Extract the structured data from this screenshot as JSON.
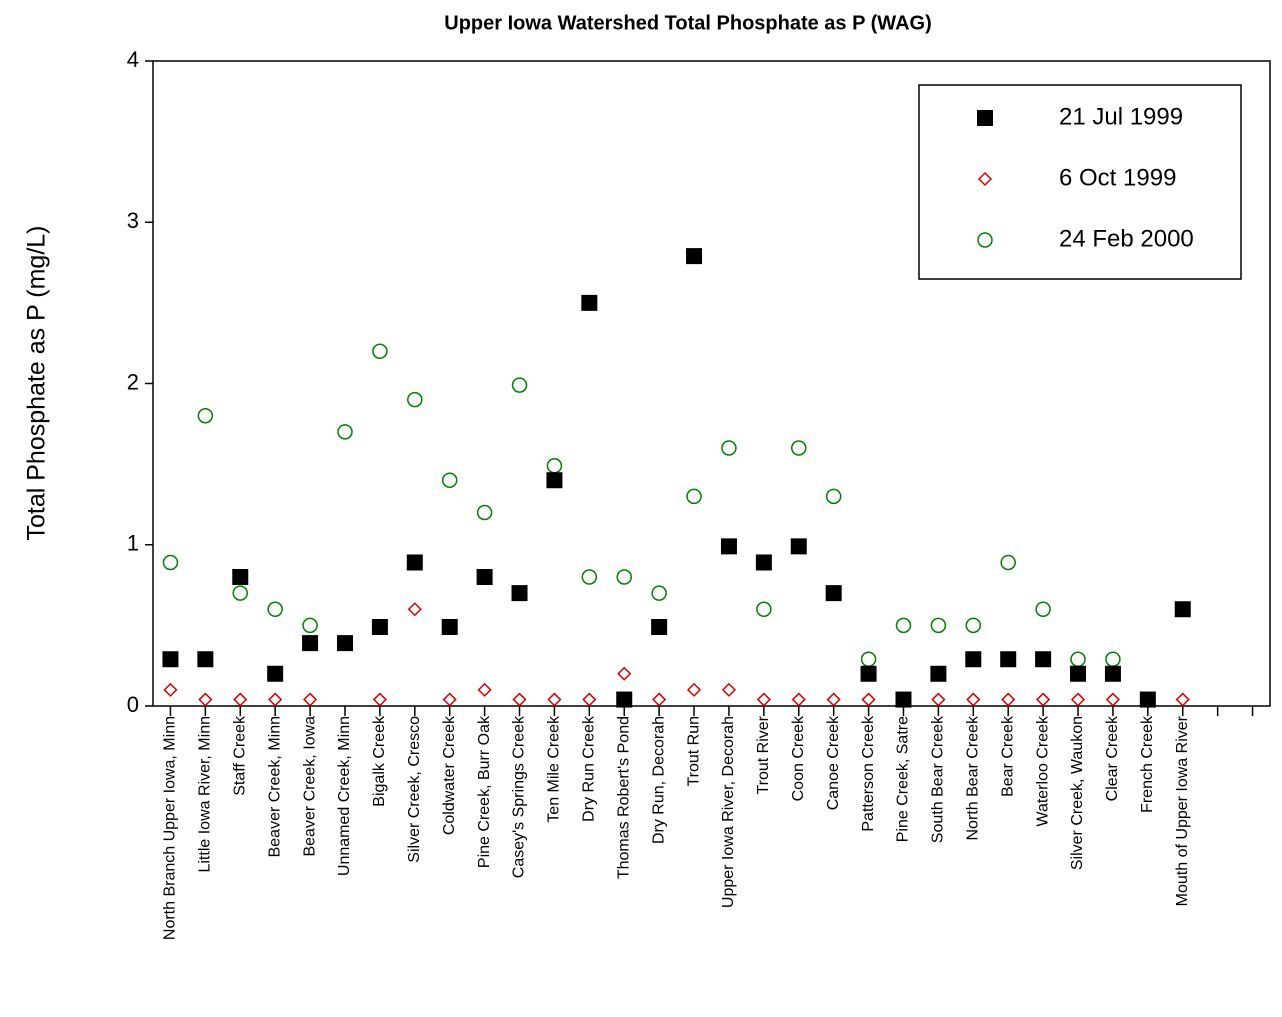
{
  "chart_data": {
    "type": "scatter",
    "title": "Upper Iowa Watershed Total Phosphate as P  (WAG)",
    "y_label": "Total Phosphate as P (mg/L)",
    "categories": [
      "North Branch Upper Iowa, Minn",
      "Little Iowa River, Minn",
      "Staff Creek",
      "Beaver Creek, Minn",
      "Beaver Creek, Iowa",
      "Unnamed Creek, Minn",
      "Bigalk Creek",
      "Silver Creek, Cresco",
      "Coldwater Creek",
      "Pine Creek, Burr Oak",
      "Casey's Springs Creek",
      "Ten Mile Creek",
      "Dry Run Creek",
      "Thomas Robert's Pond",
      "Dry Run, Decorah",
      "Trout Run",
      "Upper Iowa River, Decorah",
      "Trout River",
      "Coon Creek",
      "Canoe Creek",
      "Patterson Creek",
      "Pine Creek, Satre",
      "South Bear Creek",
      "North Bear Creek",
      "Bear Creek",
      "Waterloo Creek",
      "Silver Creek, Waukon",
      "Clear Creek",
      "French Creek",
      "Mouth of Upper Iowa River",
      null,
      null
    ],
    "series": [
      {
        "name": "21 Jul 1999",
        "color": "#000000",
        "marker": "square",
        "values": [
          0.29,
          0.29,
          0.8,
          0.2,
          0.39,
          0.39,
          0.49,
          0.89,
          0.49,
          0.8,
          0.7,
          1.4,
          2.5,
          0.04,
          0.49,
          2.79,
          0.99,
          0.89,
          0.99,
          0.7,
          0.2,
          0.04,
          0.2,
          0.29,
          0.29,
          0.29,
          0.2,
          0.2,
          0.04,
          0.6,
          null,
          null
        ]
      },
      {
        "name": "6 Oct 1999",
        "color": "#d40000",
        "marker": "diamond",
        "values": [
          0.1,
          0.04,
          0.04,
          0.04,
          0.04,
          null,
          0.04,
          0.6,
          0.04,
          0.1,
          0.04,
          0.04,
          0.04,
          0.2,
          0.04,
          0.1,
          0.1,
          0.04,
          0.04,
          0.04,
          0.04,
          0.04,
          0.04,
          0.04,
          0.04,
          0.04,
          0.04,
          0.04,
          null,
          0.04,
          null,
          null
        ]
      },
      {
        "name": "24 Feb 2000",
        "color": "#008000",
        "marker": "circle",
        "values": [
          0.89,
          1.8,
          0.7,
          0.6,
          0.5,
          1.7,
          2.2,
          1.9,
          1.4,
          1.2,
          1.99,
          1.49,
          0.8,
          0.8,
          0.7,
          1.3,
          1.6,
          0.6,
          1.6,
          1.3,
          0.29,
          0.5,
          0.5,
          0.5,
          0.89,
          0.6,
          0.29,
          0.29,
          null,
          null,
          null,
          null
        ]
      }
    ],
    "ylim": [
      0,
      4
    ],
    "yticks": [
      0,
      1,
      2,
      3,
      4
    ],
    "grid": false,
    "legend": "upper right"
  }
}
